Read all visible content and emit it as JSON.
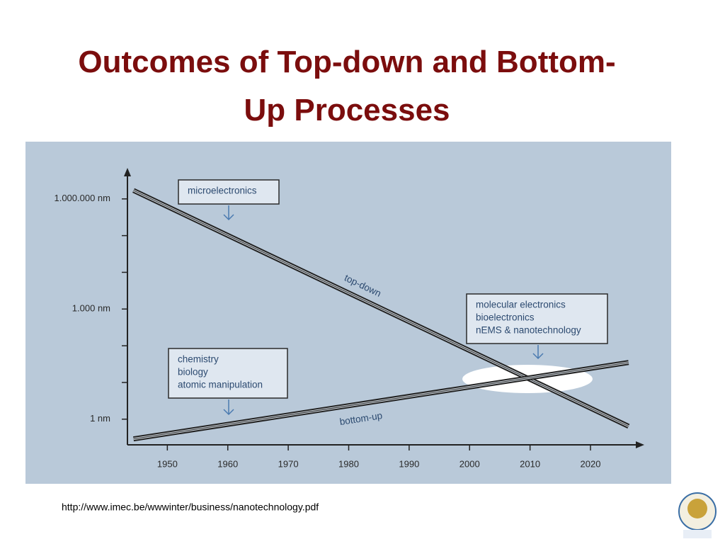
{
  "title": "Outcomes of Top-down and Bottom-Up Processes",
  "source": "http://www.imec.be/wwwinter/business/nanotechnology.pdf",
  "chart_data": {
    "type": "line",
    "x": [
      1944.4,
      2026.3
    ],
    "series": [
      {
        "name": "top-down",
        "color": "#222222",
        "values": [
          1700000,
          0.64
        ]
      },
      {
        "name": "bottom-up",
        "color": "#222222",
        "values": [
          0.29,
          35
        ]
      }
    ],
    "xlim": [
      1943.4,
      2028.9
    ],
    "xticks": [
      1950,
      1960,
      1970,
      1980,
      1990,
      2000,
      2010,
      2020
    ],
    "ylim": [
      0.2,
      7000000
    ],
    "ylog": true,
    "yticks": [
      {
        "value": 1,
        "label": "1 nm"
      },
      {
        "value": 1000,
        "label": "1.000 nm"
      },
      {
        "value": 1000000,
        "label": "1.000.000 nm"
      }
    ],
    "minor_yticks": [
      10,
      100,
      10000,
      100000
    ],
    "annotations": [
      {
        "lines": [
          "microelectronics"
        ]
      },
      {
        "lines": [
          "molecular electronics",
          "bioelectronics",
          "nEMS & nanotechnology"
        ]
      },
      {
        "lines": [
          "chemistry",
          "biology",
          "atomic manipulation"
        ]
      }
    ]
  }
}
